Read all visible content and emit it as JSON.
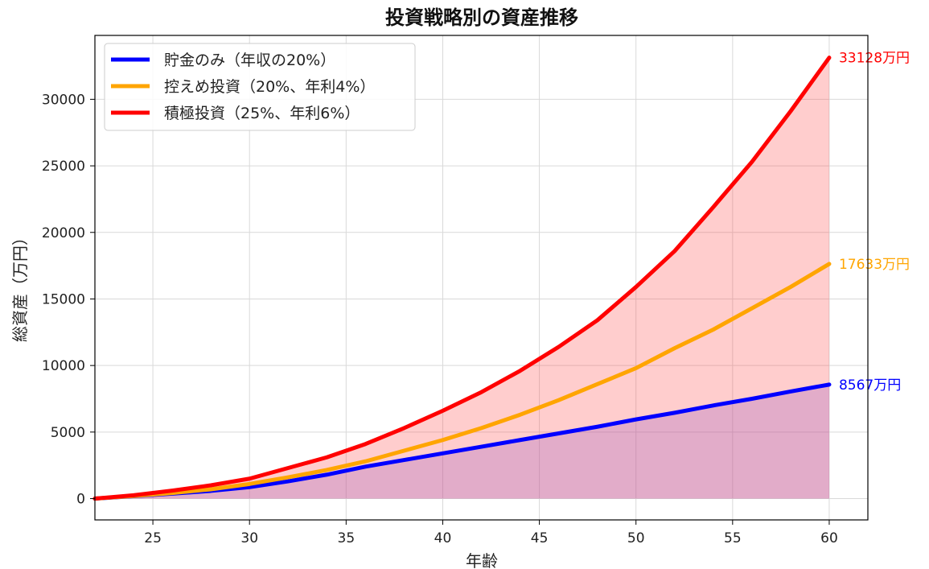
{
  "chart_data": {
    "type": "line",
    "title": "投資戦略別の資産推移",
    "xlabel": "年齢",
    "ylabel": "総資産（万円）",
    "xlim": [
      22,
      62
    ],
    "ylim": [
      -1600,
      34800
    ],
    "x_ticks": [
      25,
      30,
      35,
      40,
      45,
      50,
      55,
      60
    ],
    "y_ticks": [
      0,
      5000,
      10000,
      15000,
      20000,
      25000,
      30000
    ],
    "grid": true,
    "legend_position": "top-left",
    "x": [
      22,
      24,
      26,
      28,
      30,
      32,
      34,
      36,
      38,
      40,
      42,
      44,
      46,
      48,
      50,
      52,
      54,
      56,
      58,
      60
    ],
    "series": [
      {
        "name": "貯金のみ（年収の20%）",
        "color": "#0000ff",
        "values": [
          0,
          180,
          370,
          580,
          860,
          1300,
          1800,
          2400,
          2900,
          3400,
          3900,
          4400,
          4900,
          5400,
          5950,
          6450,
          7000,
          7500,
          8050,
          8567
        ],
        "end_label": "8567万円"
      },
      {
        "name": "控えめ投資（20%、年利4%）",
        "color": "#ffa500",
        "values": [
          0,
          200,
          420,
          700,
          1100,
          1600,
          2150,
          2800,
          3600,
          4400,
          5300,
          6300,
          7400,
          8600,
          9800,
          11300,
          12700,
          14300,
          15900,
          17633
        ],
        "end_label": "17633万円"
      },
      {
        "name": "積極投資（25%、年利6%）",
        "color": "#ff0000",
        "values": [
          0,
          250,
          600,
          1000,
          1500,
          2300,
          3100,
          4100,
          5300,
          6600,
          8000,
          9600,
          11400,
          13400,
          15900,
          18600,
          21900,
          25300,
          29100,
          33128
        ],
        "end_label": "33128万円"
      }
    ],
    "fills": [
      {
        "between": [
          "貯金のみ（年収の20%）",
          "zero"
        ],
        "color": "#7b68ee",
        "opacity": 0.3
      },
      {
        "between": [
          "積極投資（25%、年利6%）",
          "zero"
        ],
        "color": "#ff4d4d",
        "opacity": 0.28
      }
    ]
  }
}
